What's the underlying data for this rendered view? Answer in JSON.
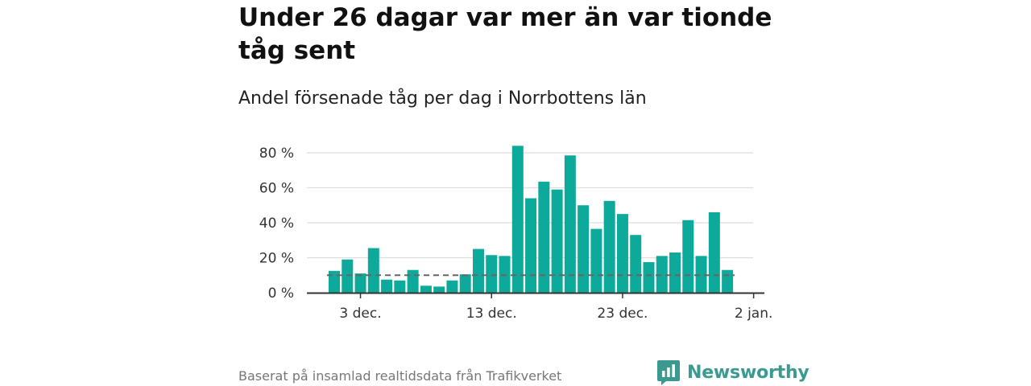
{
  "title": "Under 26 dagar var mer än var tionde tåg sent",
  "subtitle": "Andel försenade tåg per dag i Norrbottens län",
  "footer": "Baserat på insamlad realtidsdata från Trafikverket",
  "brand": {
    "name": "Newsworthy",
    "icon": "newsworthy-logo-icon",
    "color": "#3a9a90"
  },
  "colors": {
    "bar": "#0da99a",
    "reference_line": "#666666",
    "grid": "#dddddd",
    "axis": "#333333"
  },
  "chart_data": {
    "type": "bar",
    "title": "Andel försenade tåg per dag i Norrbottens län",
    "ylabel": "",
    "xlabel": "",
    "unit": "%",
    "x_tick_labels": [
      "3 dec.",
      "13 dec.",
      "23 dec.",
      "2 jan."
    ],
    "x_tick_dates": [
      "2024-12-03",
      "2024-12-13",
      "2024-12-23",
      "2025-01-02"
    ],
    "y_ticks": [
      0,
      20,
      40,
      60,
      80
    ],
    "y_tick_labels": [
      "0 %",
      "20 %",
      "40 %",
      "60 %",
      "80 %"
    ],
    "ylim": [
      0,
      80
    ],
    "grid": true,
    "reference_line": {
      "value": 10,
      "style": "dashed"
    },
    "x": [
      "2024-12-01",
      "2024-12-02",
      "2024-12-03",
      "2024-12-04",
      "2024-12-05",
      "2024-12-06",
      "2024-12-07",
      "2024-12-08",
      "2024-12-09",
      "2024-12-10",
      "2024-12-11",
      "2024-12-12",
      "2024-12-13",
      "2024-12-14",
      "2024-12-15",
      "2024-12-16",
      "2024-12-17",
      "2024-12-18",
      "2024-12-19",
      "2024-12-20",
      "2024-12-21",
      "2024-12-22",
      "2024-12-23",
      "2024-12-24",
      "2024-12-25",
      "2024-12-26",
      "2024-12-27",
      "2024-12-28",
      "2024-12-29",
      "2024-12-30",
      "2024-12-31"
    ],
    "values": [
      12.5,
      19,
      11,
      25.5,
      7.5,
      7,
      13,
      4,
      3.5,
      7,
      10.5,
      25,
      21.5,
      21,
      84,
      54,
      63.5,
      59,
      78.5,
      50,
      36.5,
      52.5,
      45,
      33,
      17.5,
      21,
      23,
      41.5,
      21,
      46,
      13
    ]
  }
}
